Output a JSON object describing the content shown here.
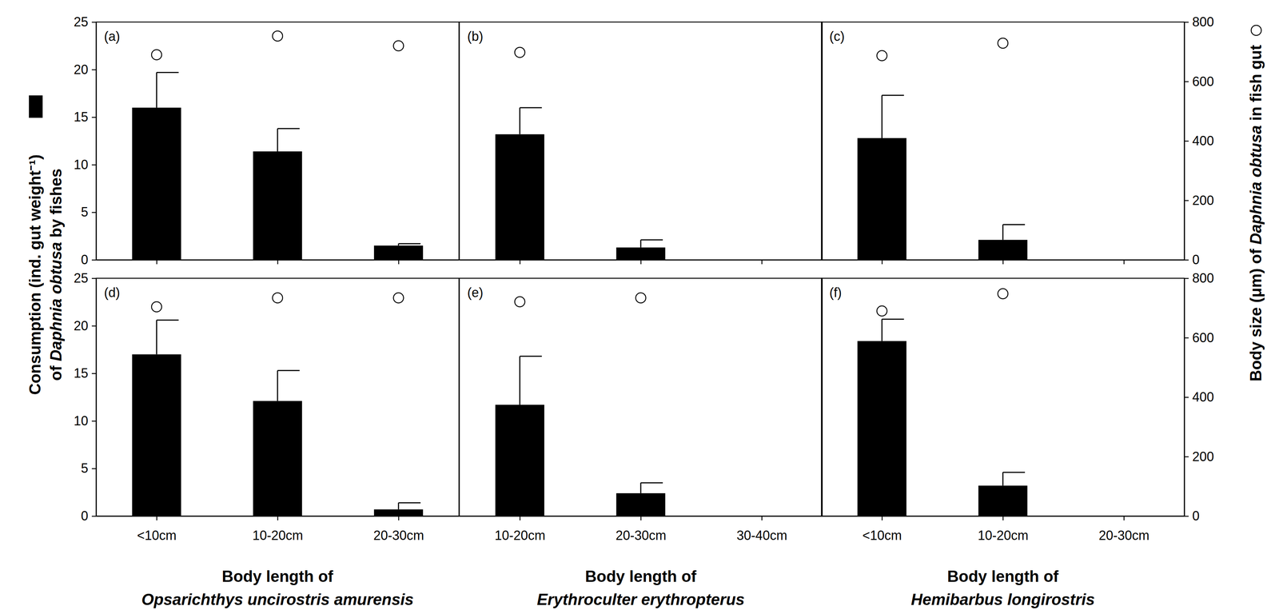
{
  "chart_data": [
    {
      "type": "bar",
      "panel_label": "(a)",
      "categories": [
        null,
        null,
        null
      ],
      "ylim": [
        0,
        25
      ],
      "yticks": [
        0,
        5,
        10,
        15,
        20,
        25
      ],
      "y2lim": [
        0,
        800
      ],
      "ylabel": [
        [
          "Consumption (ind. gut weight⁻¹)"
        ],
        [
          "of ",
          "Daphnia obtusa",
          " by fishes"
        ]
      ],
      "series": [
        {
          "type": "bar",
          "color": "#000000",
          "values": [
            16.0,
            11.4,
            1.5
          ],
          "errors": [
            3.7,
            2.4,
            0.2
          ]
        },
        {
          "type": "scatter",
          "axis": "y2",
          "marker": "circle",
          "color": "#000000",
          "values": [
            690,
            753,
            720
          ]
        }
      ]
    },
    {
      "type": "bar",
      "panel_label": "(b)",
      "categories": [
        null,
        null,
        null
      ],
      "ylim": [
        0,
        25
      ],
      "y2lim": [
        0,
        800
      ],
      "series": [
        {
          "type": "bar",
          "color": "#000000",
          "values": [
            13.2,
            1.3,
            null
          ],
          "errors": [
            2.8,
            0.8,
            null
          ]
        },
        {
          "type": "scatter",
          "axis": "y2",
          "marker": "circle",
          "color": "#000000",
          "values": [
            698,
            null,
            null
          ]
        }
      ]
    },
    {
      "type": "bar",
      "panel_label": "(c)",
      "categories": [
        null,
        null,
        null
      ],
      "ylim": [
        0,
        25
      ],
      "y2lim": [
        0,
        800
      ],
      "y2ticks": [
        0,
        200,
        400,
        600,
        800
      ],
      "y2label": [
        "Body size (μm) of ",
        "Daphnia obtusa",
        " in fish gut"
      ],
      "series": [
        {
          "type": "bar",
          "color": "#000000",
          "values": [
            12.8,
            2.1,
            null
          ],
          "errors": [
            4.5,
            1.6,
            null
          ]
        },
        {
          "type": "scatter",
          "axis": "y2",
          "marker": "circle",
          "color": "#000000",
          "values": [
            687,
            729,
            null
          ]
        }
      ]
    },
    {
      "type": "bar",
      "panel_label": "(d)",
      "categories": [
        "<10cm",
        "10-20cm",
        "20-30cm"
      ],
      "ylim": [
        0,
        25
      ],
      "yticks": [
        0,
        5,
        10,
        15,
        20,
        25
      ],
      "y2lim": [
        0,
        800
      ],
      "xlabel": [
        "Body length of",
        "Opsarichthys uncirostris amurensis"
      ],
      "series": [
        {
          "type": "bar",
          "color": "#000000",
          "values": [
            17.0,
            12.1,
            0.7
          ],
          "errors": [
            3.6,
            3.2,
            0.7
          ]
        },
        {
          "type": "scatter",
          "axis": "y2",
          "marker": "circle",
          "color": "#000000",
          "values": [
            704,
            734,
            734
          ]
        }
      ]
    },
    {
      "type": "bar",
      "panel_label": "(e)",
      "categories": [
        "10-20cm",
        "20-30cm",
        "30-40cm"
      ],
      "ylim": [
        0,
        25
      ],
      "y2lim": [
        0,
        800
      ],
      "xlabel": [
        "Body length of",
        "Erythroculter erythropterus"
      ],
      "series": [
        {
          "type": "bar",
          "color": "#000000",
          "values": [
            11.7,
            2.4,
            null
          ],
          "errors": [
            5.1,
            1.1,
            null
          ]
        },
        {
          "type": "scatter",
          "axis": "y2",
          "marker": "circle",
          "color": "#000000",
          "values": [
            721,
            734,
            null
          ]
        }
      ]
    },
    {
      "type": "bar",
      "panel_label": "(f)",
      "categories": [
        "<10cm",
        "10-20cm",
        "20-30cm"
      ],
      "ylim": [
        0,
        25
      ],
      "y2lim": [
        0,
        800
      ],
      "y2ticks": [
        0,
        200,
        400,
        600,
        800
      ],
      "xlabel": [
        "Body length of",
        "Hemibarbus longirostris"
      ],
      "series": [
        {
          "type": "bar",
          "color": "#000000",
          "values": [
            18.4,
            3.2,
            null
          ],
          "errors": [
            2.3,
            1.4,
            null
          ]
        },
        {
          "type": "scatter",
          "axis": "y2",
          "marker": "circle",
          "color": "#000000",
          "values": [
            690,
            748,
            null
          ]
        }
      ]
    }
  ]
}
